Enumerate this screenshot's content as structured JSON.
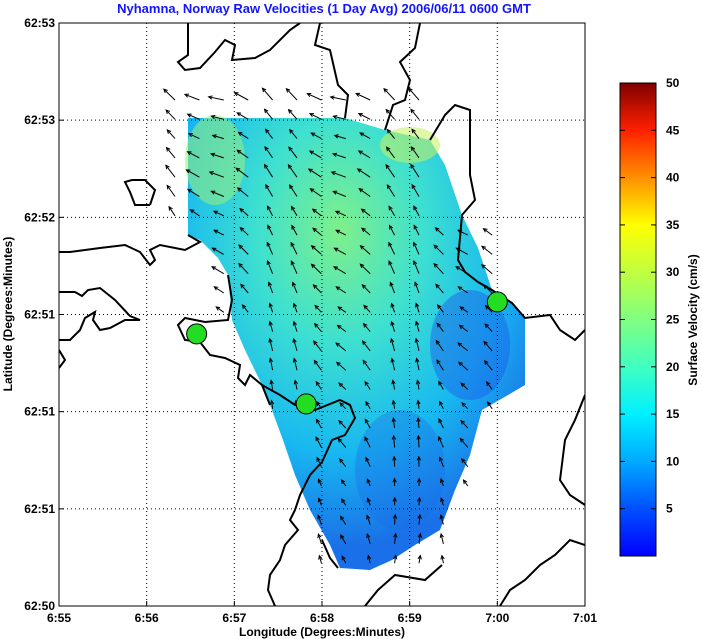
{
  "chart_data": {
    "type": "heatmap",
    "title": "Nyhamna, Norway Raw Velocities (1 Day Avg) 2006/06/11 0600 GMT",
    "xlabel": "Longitude (Degrees:Minutes)",
    "ylabel": "Latitude (Degrees:Minutes)",
    "x_tick_labels": [
      "6:55",
      "6:56",
      "6:57",
      "6:58",
      "6:59",
      "7:00",
      "7:01"
    ],
    "y_tick_labels": [
      "62:50",
      "62:51",
      "62:51",
      "62:51",
      "62:52",
      "62:53",
      "62:53"
    ],
    "grid": true,
    "colorbar": {
      "label": "Surface Velocity (cm/s)",
      "range": [
        0,
        50
      ],
      "tick_labels": [
        "5",
        "10",
        "15",
        "20",
        "25",
        "30",
        "35",
        "40",
        "45",
        "50"
      ],
      "colormap": "jet"
    },
    "sites": [
      {
        "name": "site-1",
        "lon_index": 1.57,
        "lat_index": 2.8,
        "color": "#22dd22"
      },
      {
        "name": "site-2",
        "lon_index": 2.82,
        "lat_index": 2.08,
        "color": "#22dd22"
      },
      {
        "name": "site-3",
        "lon_index": 5.0,
        "lat_index": 3.13,
        "color": "#22dd22"
      }
    ],
    "colors": {
      "title": "#1414ff",
      "coastline": "#000000",
      "site": "#22dd22"
    }
  }
}
